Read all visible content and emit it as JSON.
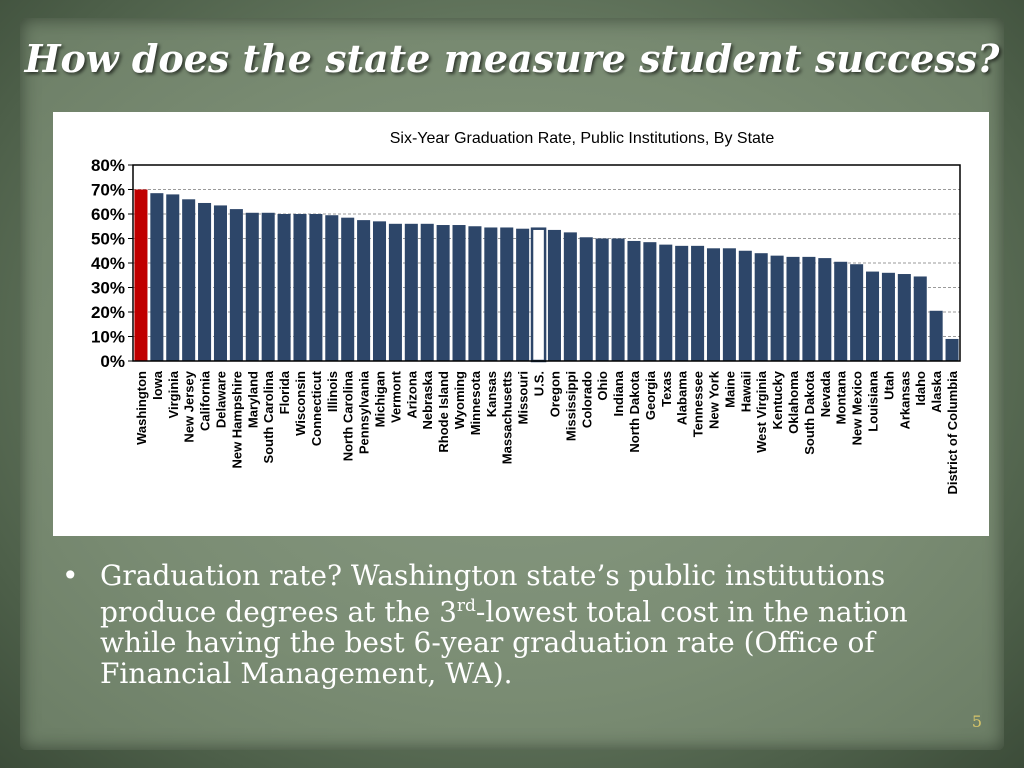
{
  "slide": {
    "title": "How does the state measure student success?",
    "page_number": "5",
    "bullet": {
      "marker": "•",
      "text_before": "Graduation rate?  Washington state’s public institutions produce degrees at the 3",
      "superscript": "rd",
      "text_after": "-lowest total cost in the nation while having the best 6-year graduation rate (Office of Financial Management, WA)."
    }
  },
  "chart_data": {
    "type": "bar",
    "title": "Six-Year Graduation Rate, Public Institutions, By State",
    "xlabel": "",
    "ylabel": "",
    "ylim": [
      0,
      80
    ],
    "yticks": [
      "80%",
      "70%",
      "60%",
      "50%",
      "40%",
      "30%",
      "20%",
      "10%",
      "0%"
    ],
    "grid": true,
    "colors": {
      "default": "#2d4669",
      "highlight": "#c00000",
      "us": "#ffffff",
      "us_border": "#2d4669"
    },
    "highlight_category": "Washington",
    "outline_category": "U.S.",
    "categories": [
      "Washington",
      "Iowa",
      "Virginia",
      "New Jersey",
      "California",
      "Delaware",
      "New Hampshire",
      "Maryland",
      "South Carolina",
      "Florida",
      "Wisconsin",
      "Connecticut",
      "Illinois",
      "North Carolina",
      "Pennsylvania",
      "Michigan",
      "Vermont",
      "Arizona",
      "Nebraska",
      "Rhode Island",
      "Wyoming",
      "Minnesota",
      "Kansas",
      "Massachusetts",
      "Missouri",
      "U.S.",
      "Oregon",
      "Mississippi",
      "Colorado",
      "Ohio",
      "Indiana",
      "North Dakota",
      "Georgia",
      "Texas",
      "Alabama",
      "Tennessee",
      "New York",
      "Maine",
      "Hawaii",
      "West Virginia",
      "Kentucky",
      "Oklahoma",
      "South Dakota",
      "Nevada",
      "Montana",
      "New Mexico",
      "Louisiana",
      "Utah",
      "Arkansas",
      "Idaho",
      "Alaska",
      "District of Columbia"
    ],
    "values": [
      70,
      68.5,
      68,
      66,
      64.5,
      63.5,
      62,
      60.5,
      60.5,
      60,
      60,
      60,
      59.5,
      58.5,
      57.5,
      57,
      56,
      56,
      56,
      55.5,
      55.5,
      55,
      54.5,
      54.5,
      54,
      54,
      53.5,
      52.5,
      50.5,
      50,
      50,
      49,
      48.5,
      47.5,
      47,
      47,
      46,
      46,
      45,
      44,
      43,
      42.5,
      42.5,
      42,
      40.5,
      39.5,
      36.5,
      36,
      35.5,
      34.5,
      20.5,
      9
    ]
  }
}
